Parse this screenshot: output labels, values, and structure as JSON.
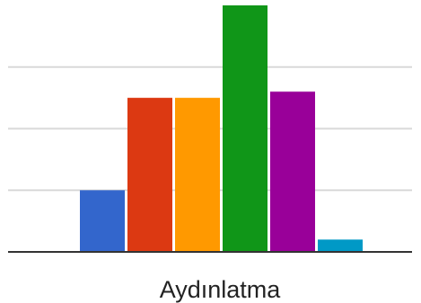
{
  "chart_data": {
    "type": "bar",
    "categories": [
      "Aydınlatma"
    ],
    "series": [
      {
        "values": [
          1
        ],
        "color": "#3366cc"
      },
      {
        "values": [
          2.5
        ],
        "color": "#dc3912"
      },
      {
        "values": [
          2.5
        ],
        "color": "#ff9900"
      },
      {
        "values": [
          4
        ],
        "color": "#109618"
      },
      {
        "values": [
          2.6
        ],
        "color": "#990099"
      },
      {
        "values": [
          0.2
        ],
        "color": "#0099c6"
      }
    ],
    "title": "",
    "xlabel": "",
    "ylabel": "",
    "ylim": [
      0,
      4
    ],
    "grid": true,
    "gridlines": [
      1,
      2,
      3
    ]
  }
}
